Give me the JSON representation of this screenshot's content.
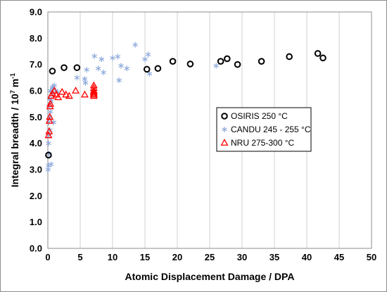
{
  "chart_data": {
    "type": "scatter",
    "title": "",
    "xlabel": "Atomic Displacement Damage / DPA",
    "ylabel": "Integral breadth / 10",
    "ylabel_sup": "7",
    "ylabel_unit": " m",
    "ylabel_unit_sup": "-1",
    "xlim": [
      0,
      50
    ],
    "ylim": [
      0,
      9
    ],
    "x_ticks": [
      0,
      5,
      10,
      15,
      20,
      25,
      30,
      35,
      40,
      45,
      50
    ],
    "x_tick_labels": [
      "0",
      "5",
      "10",
      "15",
      "20",
      "25",
      "30",
      "35",
      "40",
      "45",
      "50"
    ],
    "y_ticks": [
      0,
      1,
      2,
      3,
      4,
      5,
      6,
      7,
      8,
      9
    ],
    "y_tick_labels": [
      "0.0",
      "1.0",
      "2.0",
      "3.0",
      "4.0",
      "5.0",
      "6.0",
      "7.0",
      "8.0",
      "9.0"
    ],
    "grid": "vertical",
    "legend_position": "right-center",
    "series": [
      {
        "name": "OSIRIS 250 °C",
        "marker": "circle",
        "color": "#000000",
        "points": [
          [
            0.1,
            3.55
          ],
          [
            0.7,
            6.75
          ],
          [
            2.5,
            6.88
          ],
          [
            4.5,
            6.88
          ],
          [
            15.3,
            6.82
          ],
          [
            17.0,
            6.85
          ],
          [
            19.3,
            7.12
          ],
          [
            22.0,
            7.02
          ],
          [
            26.7,
            7.12
          ],
          [
            27.7,
            7.22
          ],
          [
            29.3,
            7.0
          ],
          [
            33.0,
            7.12
          ],
          [
            37.3,
            7.3
          ],
          [
            41.7,
            7.42
          ],
          [
            42.5,
            7.25
          ]
        ]
      },
      {
        "name": "CANDU 245 - 255 °C",
        "marker": "star",
        "color": "#8faadc",
        "points": [
          [
            0.05,
            3.0
          ],
          [
            0.1,
            3.15
          ],
          [
            0.2,
            3.6
          ],
          [
            0.1,
            4.0
          ],
          [
            0.2,
            4.3
          ],
          [
            0.3,
            4.5
          ],
          [
            0.15,
            4.8
          ],
          [
            0.3,
            5.0
          ],
          [
            0.4,
            5.2
          ],
          [
            0.2,
            5.4
          ],
          [
            0.5,
            5.6
          ],
          [
            0.3,
            5.7
          ],
          [
            0.6,
            5.9
          ],
          [
            0.4,
            6.0
          ],
          [
            0.7,
            6.1
          ],
          [
            1.0,
            6.2
          ],
          [
            1.2,
            6.0
          ],
          [
            0.8,
            6.15
          ],
          [
            1.5,
            5.95
          ],
          [
            0.5,
            3.2
          ],
          [
            0.9,
            4.8
          ],
          [
            4.5,
            6.5
          ],
          [
            5.7,
            6.45
          ],
          [
            6.0,
            6.8
          ],
          [
            5.8,
            6.3
          ],
          [
            7.2,
            7.32
          ],
          [
            7.8,
            6.85
          ],
          [
            8.3,
            7.2
          ],
          [
            8.6,
            6.7
          ],
          [
            10.0,
            7.25
          ],
          [
            10.8,
            7.3
          ],
          [
            11.3,
            6.95
          ],
          [
            11.0,
            6.4
          ],
          [
            12.2,
            6.85
          ],
          [
            13.5,
            7.75
          ],
          [
            15.0,
            7.2
          ],
          [
            15.5,
            7.38
          ],
          [
            15.7,
            6.65
          ],
          [
            26.0,
            6.95
          ]
        ]
      },
      {
        "name": "NRU 275-300 °C",
        "marker": "triangle",
        "color": "#ff0000",
        "points": [
          [
            0.1,
            4.3
          ],
          [
            0.2,
            4.45
          ],
          [
            0.25,
            4.85
          ],
          [
            0.3,
            5.0
          ],
          [
            0.35,
            5.4
          ],
          [
            0.4,
            5.5
          ],
          [
            0.5,
            5.8
          ],
          [
            0.7,
            5.9
          ],
          [
            1.0,
            6.0
          ],
          [
            1.3,
            5.85
          ],
          [
            1.6,
            5.75
          ],
          [
            2.2,
            5.95
          ],
          [
            2.8,
            5.85
          ],
          [
            3.3,
            5.8
          ],
          [
            4.3,
            6.0
          ],
          [
            5.7,
            5.85
          ],
          [
            7.1,
            5.8
          ],
          [
            7.1,
            5.9
          ],
          [
            7.1,
            6.0
          ],
          [
            7.1,
            6.1
          ],
          [
            7.1,
            6.2
          ],
          [
            7.1,
            5.85
          ],
          [
            7.1,
            5.95
          ]
        ]
      }
    ]
  }
}
